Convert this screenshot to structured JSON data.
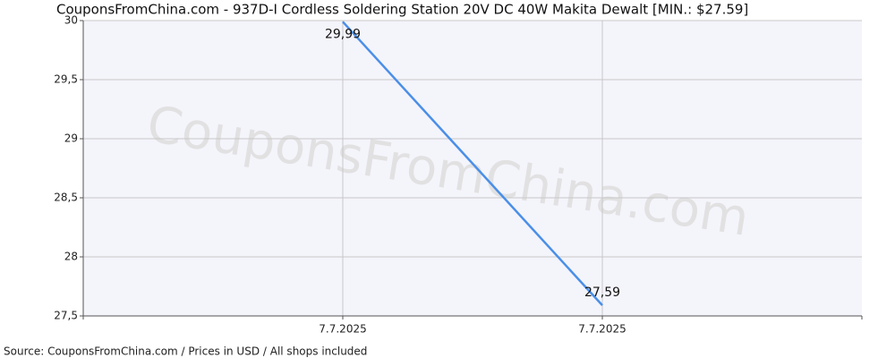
{
  "chart_data": {
    "type": "line",
    "title": "CouponsFromChina.com - 937D-I Cordless Soldering Station 20V DC 40W Makita Dewalt [MIN.: $27.59]",
    "source": "Source: CouponsFromChina.com / Prices in USD / All shops included",
    "watermark": "CouponsFromChina.com",
    "categories": [
      "7.7.2025",
      "7.7.2025"
    ],
    "values": [
      29.99,
      27.59
    ],
    "value_labels": [
      "29,99",
      "27,59"
    ],
    "color": "#4a8fe8",
    "ylim": [
      27.5,
      30
    ],
    "yticks": [
      {
        "value": 27.5,
        "label": "27,5"
      },
      28,
      {
        "value": 28.5,
        "label": "28,5"
      },
      29,
      {
        "value": 29.5,
        "label": "29,5"
      },
      30
    ],
    "grid": true
  }
}
